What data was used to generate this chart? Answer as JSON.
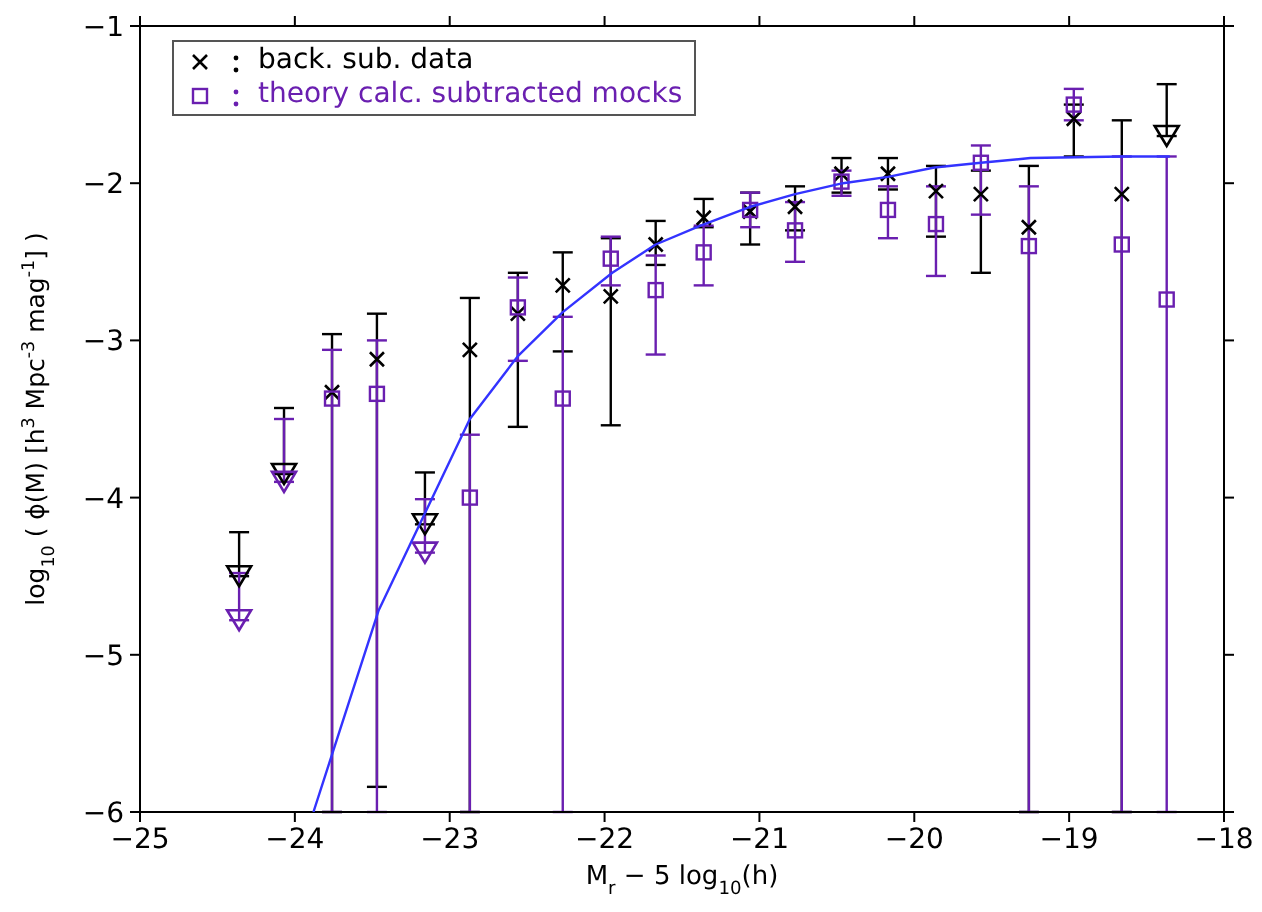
{
  "chart_data": {
    "type": "scatter",
    "xlabel": "M$_{r}$ − 5 log$_{10}$(h)",
    "ylabel": "log$_{10}$ ( ϕ(M)   [h$^{3}$ Mpc$^{-3}$ mag$^{-1}$] )",
    "xlim": [
      -25,
      -18
    ],
    "xticks": [
      -25,
      -24,
      -23,
      -22,
      -21,
      -20,
      -19,
      -18
    ],
    "ylim": [
      -6,
      -1
    ],
    "yticks": [
      -6,
      -5,
      -4,
      -3,
      -2,
      -1
    ],
    "grid": false,
    "legend": "top left",
    "series": [
      {
        "name": "back. sub. data",
        "marker": "cross",
        "color": "#000000",
        "x": [
          -23.76,
          -23.47,
          -22.87,
          -22.56,
          -22.27,
          -21.96,
          -21.67,
          -21.36,
          -21.06,
          -20.77,
          -20.47,
          -20.17,
          -19.86,
          -19.57,
          -19.26,
          -18.97,
          -18.66
        ],
        "values": [
          -3.33,
          -3.12,
          -3.06,
          -2.83,
          -2.65,
          -2.72,
          -2.39,
          -2.22,
          -2.18,
          -2.15,
          -1.94,
          -1.94,
          -2.05,
          -2.07,
          -2.28,
          -1.59,
          -2.07
        ],
        "errors": [
          [
            -6,
            -2.96
          ],
          [
            -5.84,
            -2.83
          ],
          [
            -6,
            -2.73
          ],
          [
            -3.55,
            -2.57
          ],
          [
            -3.07,
            -2.44
          ],
          [
            -3.54,
            -2.35
          ],
          [
            -2.52,
            -2.24
          ],
          [
            -2.28,
            -2.1
          ],
          [
            -2.39,
            -2.06
          ],
          [
            -2.3,
            -2.02
          ],
          [
            -2.06,
            -1.84
          ],
          [
            -2.04,
            -1.84
          ],
          [
            -2.34,
            -1.89
          ],
          [
            -2.57,
            -1.92
          ],
          [
            -6,
            -1.89
          ],
          [
            -1.83,
            -1.5
          ],
          [
            -6,
            -1.6
          ]
        ]
      },
      {
        "name": "theory calc. subtracted mocks",
        "marker": "square",
        "color": "#6a1fb0",
        "x": [
          -23.76,
          -23.47,
          -22.87,
          -22.56,
          -22.27,
          -21.96,
          -21.67,
          -21.36,
          -21.06,
          -20.77,
          -20.47,
          -20.17,
          -19.86,
          -19.57,
          -19.26,
          -18.97,
          -18.66,
          -18.37
        ],
        "values": [
          -3.37,
          -3.34,
          -4.0,
          -2.79,
          -3.37,
          -2.48,
          -2.68,
          -2.44,
          -2.17,
          -2.3,
          -1.99,
          -2.17,
          -2.26,
          -1.87,
          -2.4,
          -1.5,
          -2.39,
          -2.74
        ],
        "errors": [
          [
            -6,
            -3.06
          ],
          [
            -6,
            -3.0
          ],
          [
            -6,
            -3.6
          ],
          [
            -3.13,
            -2.6
          ],
          [
            -6,
            -2.85
          ],
          [
            -2.65,
            -2.34
          ],
          [
            -3.09,
            -2.46
          ],
          [
            -2.65,
            -2.27
          ],
          [
            -2.28,
            -2.06
          ],
          [
            -2.5,
            -2.12
          ],
          [
            -2.08,
            -1.92
          ],
          [
            -2.35,
            -2.02
          ],
          [
            -2.59,
            -2.02
          ],
          [
            -2.2,
            -1.76
          ],
          [
            -6,
            -2.02
          ],
          [
            -1.6,
            -1.4
          ],
          [
            -6,
            -1.83
          ],
          [
            -6,
            -1.83
          ]
        ]
      },
      {
        "marker": "triangle",
        "color": "#000000",
        "x": [
          -24.36,
          -24.07,
          -23.16,
          -18.37
        ],
        "values": [
          -4.5,
          -3.85,
          -4.17,
          -1.7
        ],
        "errors": [
          [
            -4.5,
            -4.22
          ],
          [
            -3.85,
            -3.43
          ],
          [
            -4.17,
            -3.84
          ],
          [
            -1.7,
            -1.37
          ]
        ]
      },
      {
        "marker": "triangle",
        "color": "#6a1fb0",
        "x": [
          -24.36,
          -24.07,
          -23.16
        ],
        "values": [
          -4.78,
          -3.9,
          -4.35
        ],
        "errors": [
          [
            -4.78,
            -4.48
          ],
          [
            -3.9,
            -3.5
          ],
          [
            -4.35,
            -4.01
          ]
        ]
      },
      {
        "type": "line",
        "marker": "none",
        "line_style": "solid",
        "color": "#3333ff",
        "x": [
          -23.88,
          -23.46,
          -22.87,
          -22.56,
          -22.27,
          -21.95,
          -21.67,
          -21.38,
          -21.06,
          -20.77,
          -20.46,
          -20.17,
          -19.87,
          -19.57,
          -19.25,
          -18.66,
          -18.35
        ],
        "values": [
          -6.0,
          -4.72,
          -3.5,
          -3.1,
          -2.82,
          -2.57,
          -2.39,
          -2.27,
          -2.15,
          -2.07,
          -2.0,
          -1.96,
          -1.9,
          -1.87,
          -1.84,
          -1.83,
          -1.83
        ]
      }
    ]
  }
}
